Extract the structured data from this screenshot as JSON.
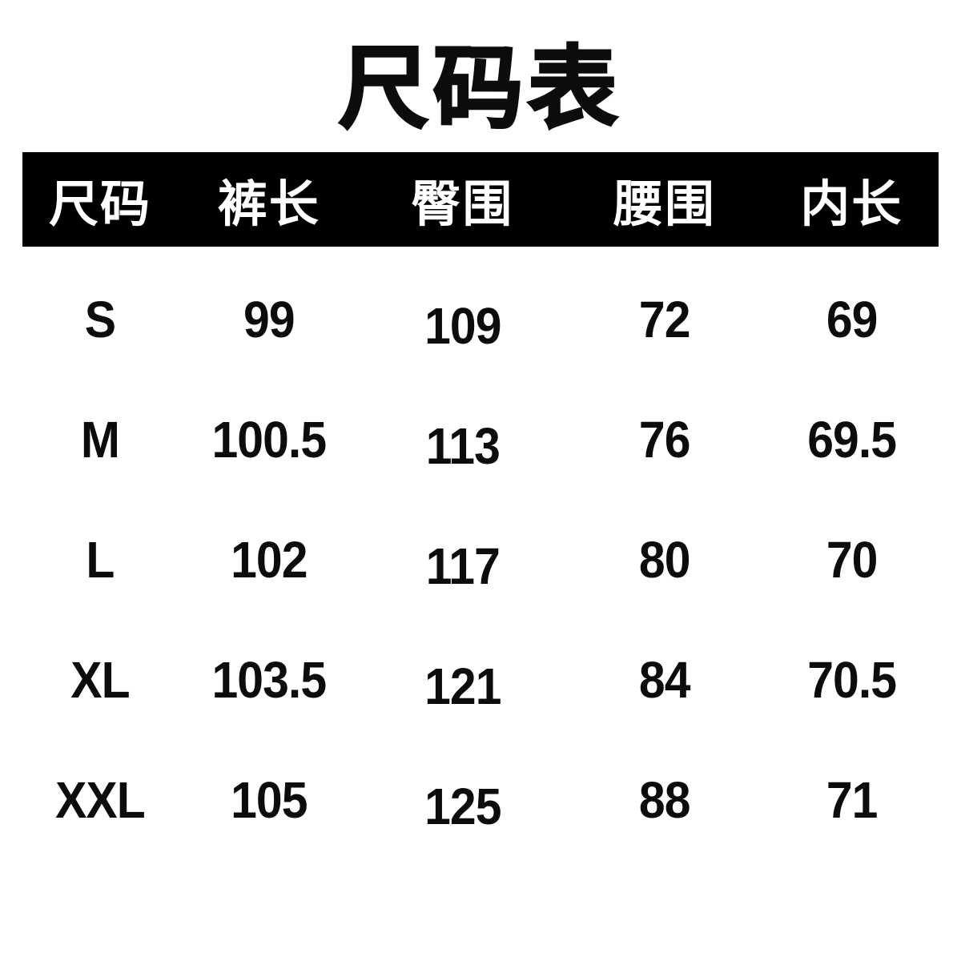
{
  "title": "尺码表",
  "chart_data": {
    "type": "table",
    "title": "尺码表",
    "columns": [
      "尺码",
      "裤长",
      "臀围",
      "腰围",
      "内长"
    ],
    "rows": [
      [
        "S",
        99,
        109,
        72,
        69
      ],
      [
        "M",
        100.5,
        113,
        76,
        69.5
      ],
      [
        "L",
        102,
        117,
        80,
        70
      ],
      [
        "XL",
        103.5,
        121,
        84,
        70.5
      ],
      [
        "XXL",
        105,
        125,
        88,
        71
      ]
    ]
  },
  "colors": {
    "page_bg": "#ffffff",
    "header_bg": "#000000",
    "header_text": "#ffffff",
    "body_text": "#0c0c0c"
  }
}
